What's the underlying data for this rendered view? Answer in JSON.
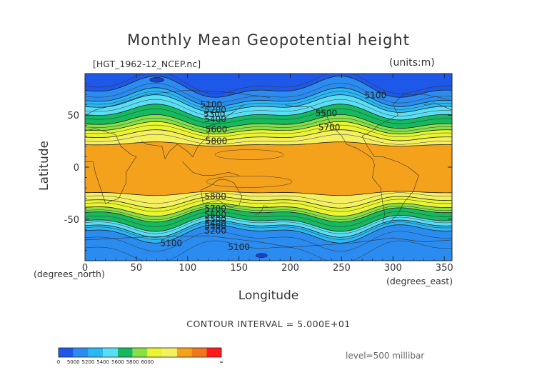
{
  "chart_data": {
    "type": "heatmap",
    "title": "Monthly Mean Geopotential height",
    "file_label": "[HGT_1962-12_NCEP.nc]",
    "units": "(units:m)",
    "xlabel": "Longitude",
    "ylabel": "Latitude",
    "x_note": "(degrees_east)",
    "y_note": "(degrees_north)",
    "xlim": [
      0,
      357.5
    ],
    "ylim": [
      -90,
      90
    ],
    "x_ticks": [
      0,
      50,
      100,
      150,
      200,
      250,
      300,
      350
    ],
    "y_ticks": [
      50,
      0,
      -50
    ],
    "contour_interval": "CONTOUR INTERVAL = 5.000E+01",
    "level": "level=500 millibar",
    "contour_labels": [
      {
        "text": "5100",
        "lon": 123,
        "lat": 60
      },
      {
        "text": "5200",
        "lon": 127,
        "lat": 55
      },
      {
        "text": "5300",
        "lon": 126,
        "lat": 51
      },
      {
        "text": "5400",
        "lon": 127,
        "lat": 46
      },
      {
        "text": "5600",
        "lon": 128,
        "lat": 36
      },
      {
        "text": "5800",
        "lon": 128,
        "lat": 25
      },
      {
        "text": "5500",
        "lon": 235,
        "lat": 52
      },
      {
        "text": "5700",
        "lon": 238,
        "lat": 38
      },
      {
        "text": "5100",
        "lon": 283,
        "lat": 69
      },
      {
        "text": "5800",
        "lon": 127,
        "lat": -28
      },
      {
        "text": "5700",
        "lon": 127,
        "lat": -40
      },
      {
        "text": "5600",
        "lon": 127,
        "lat": -46
      },
      {
        "text": "5500",
        "lon": 127,
        "lat": -50
      },
      {
        "text": "5400",
        "lon": 127,
        "lat": -54
      },
      {
        "text": "5300",
        "lon": 127,
        "lat": -57
      },
      {
        "text": "5200",
        "lon": 127,
        "lat": -61
      },
      {
        "text": "5100",
        "lon": 84,
        "lat": -73
      },
      {
        "text": "5100",
        "lon": 150,
        "lat": -77
      }
    ],
    "bands": [
      {
        "color": "#1e58e8",
        "lat_north": 90,
        "lat_south": 76
      },
      {
        "color": "#2a8cf0",
        "lat_north": 76,
        "lat_south": 66
      },
      {
        "color": "#29b8f5",
        "lat_north": 66,
        "lat_south": 60
      },
      {
        "color": "#59dff5",
        "lat_north": 60,
        "lat_south": 52
      },
      {
        "color": "#15b95e",
        "lat_north": 52,
        "lat_south": 43
      },
      {
        "color": "#86e046",
        "lat_north": 43,
        "lat_south": 37
      },
      {
        "color": "#e8f530",
        "lat_north": 37,
        "lat_south": 30
      },
      {
        "color": "#f5f060",
        "lat_north": 30,
        "lat_south": 22
      },
      {
        "color": "#f4a21c",
        "lat_north": 22,
        "lat_south": -25
      },
      {
        "color": "#f5f060",
        "lat_north": -25,
        "lat_south": -33
      },
      {
        "color": "#e8f530",
        "lat_north": -33,
        "lat_south": -40
      },
      {
        "color": "#86e046",
        "lat_north": -40,
        "lat_south": -45
      },
      {
        "color": "#15b95e",
        "lat_north": -45,
        "lat_south": -53
      },
      {
        "color": "#59dff5",
        "lat_north": -53,
        "lat_south": -58
      },
      {
        "color": "#29b8f5",
        "lat_north": -58,
        "lat_south": -63
      },
      {
        "color": "#2a8cf0",
        "lat_north": -63,
        "lat_south": -90
      }
    ],
    "colorbar": {
      "colors": [
        "#1e58e8",
        "#2a8cf0",
        "#29b8f5",
        "#59dff5",
        "#15b95e",
        "#86e046",
        "#e8f530",
        "#f5f060",
        "#f4a21c",
        "#f0781a",
        "#ff1a1a"
      ],
      "labels": [
        "0",
        "5000",
        "5200",
        "5400",
        "5600",
        "5800",
        "6000",
        "∞"
      ]
    }
  }
}
